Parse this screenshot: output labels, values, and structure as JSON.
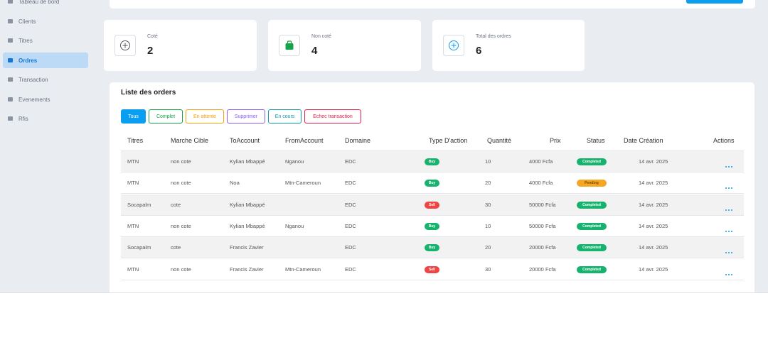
{
  "sidebar": {
    "items": [
      "Tableau de bord",
      "Clients",
      "Titres",
      "Ordres",
      "Transaction",
      "Evenements",
      "Rfis"
    ],
    "active": 3
  },
  "stats": [
    {
      "label": "Coté",
      "value": 2
    },
    {
      "label": "Non coté",
      "value": 4
    },
    {
      "label": "Total des ordres",
      "value": 6
    }
  ],
  "orders": {
    "title": "Liste des orders",
    "filters": [
      "Tous",
      "Complet",
      "En attente",
      "Supprimer",
      "En cours",
      "Echec transaction"
    ],
    "filter_colors": [
      "#0a9ef0",
      "#16a34a",
      "#f59e0b",
      "#8b5cf6",
      "#0e9ba6",
      "#e11d48"
    ],
    "active_filter": 0,
    "columns": [
      "Titres",
      "Marche Cible",
      "ToAccount",
      "FromAccount",
      "Domaine",
      "Type D'action",
      "Quantité",
      "Prix",
      "Status",
      "Date Création",
      "Actions"
    ],
    "badge_colors": {
      "Buy": "#16b36e",
      "Sell": "#ef4444",
      "Completed": "#16b36e",
      "Pending": "#f5a623"
    },
    "rows": [
      [
        "MTN",
        "non cote",
        "Kylian Mbappé",
        "Nganou",
        "EDC",
        "Buy",
        10,
        "4000 Fcfa",
        "Completed",
        "14 avr. 2025"
      ],
      [
        "MTN",
        "non cote",
        "Noa",
        "Mtn-Cameroun",
        "EDC",
        "Buy",
        20,
        "4000 Fcfa",
        "Pending",
        "14 avr. 2025"
      ],
      [
        "Socapalm",
        "cote",
        "Kylian Mbappé",
        null,
        "EDC",
        "Sell",
        30,
        "50000 Fcfa",
        "Completed",
        "14 avr. 2025"
      ],
      [
        "MTN",
        "non cote",
        "Kylian Mbappé",
        "Nganou",
        "EDC",
        "Buy",
        10,
        "50000 Fcfa",
        "Completed",
        "14 avr. 2025"
      ],
      [
        "Socapalm",
        "cote",
        "Francis Zavier",
        null,
        "EDC",
        "Buy",
        20,
        "20000 Fcfa",
        "Completed",
        "14 avr. 2025"
      ],
      [
        "MTN",
        "non cote",
        "Francis Zavier",
        "Mtn-Cameroun",
        "EDC",
        "Sell",
        30,
        "20000 Fcfa",
        "Completed",
        "14 avr. 2025"
      ]
    ]
  }
}
